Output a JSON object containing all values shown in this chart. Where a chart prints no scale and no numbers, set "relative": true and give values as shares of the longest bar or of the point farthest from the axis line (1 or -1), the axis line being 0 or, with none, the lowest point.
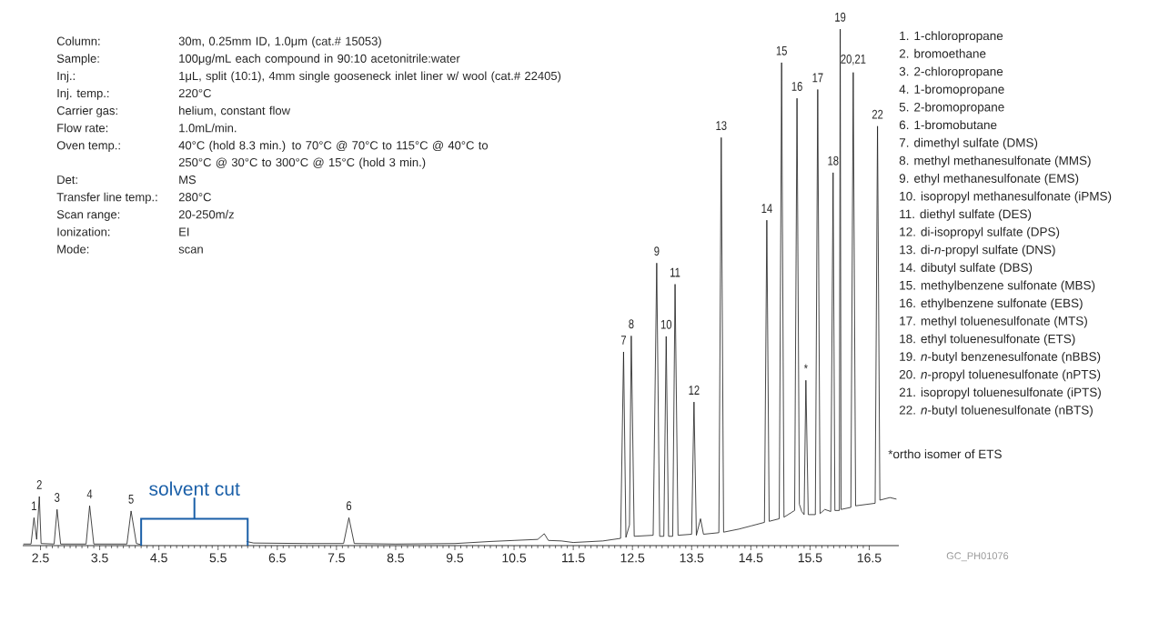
{
  "chart_data": {
    "type": "line",
    "relative": true,
    "color": "#1a1a1a",
    "x": [
      2.21,
      2.34,
      2.39,
      2.435,
      2.48,
      2.51,
      2.73,
      2.78,
      2.84,
      3.27,
      3.33,
      3.4,
      3.96,
      4.03,
      4.12,
      4.19,
      5.0,
      5.98,
      6.1,
      7.0,
      7.62,
      7.71,
      7.8,
      8.5,
      9.5,
      10.1,
      10.5,
      10.9,
      11.01,
      11.08,
      11.3,
      11.5,
      12.0,
      12.3,
      12.35,
      12.39,
      12.45,
      12.48,
      12.53,
      12.85,
      12.91,
      12.96,
      13.03,
      13.07,
      13.11,
      13.18,
      13.22,
      13.27,
      13.5,
      13.54,
      13.58,
      13.65,
      13.7,
      13.96,
      14.0,
      14.04,
      14.3,
      14.5,
      14.73,
      14.77,
      14.81,
      14.98,
      15.02,
      15.06,
      15.24,
      15.28,
      15.32,
      15.36,
      15.4,
      15.43,
      15.47,
      15.59,
      15.63,
      15.67,
      15.75,
      15.85,
      15.89,
      15.92,
      15.995,
      16.01,
      16.025,
      16.19,
      16.23,
      16.27,
      16.6,
      16.64,
      16.68,
      16.85,
      16.96
    ],
    "values": [
      0.003,
      0.003,
      0.054,
      0.012,
      0.095,
      0.004,
      0.003,
      0.07,
      0.003,
      0.003,
      0.077,
      0.003,
      0.003,
      0.067,
      0.004,
      0.002,
      null,
      0.008,
      0.005,
      0.004,
      0.004,
      0.054,
      0.004,
      0.003,
      0.004,
      0.008,
      0.01,
      0.012,
      0.023,
      0.01,
      0.009,
      0.006,
      0.009,
      0.014,
      0.375,
      0.016,
      0.04,
      0.406,
      0.018,
      0.02,
      0.547,
      0.018,
      0.018,
      0.405,
      0.018,
      0.018,
      0.506,
      0.02,
      0.022,
      0.278,
      0.02,
      0.052,
      0.022,
      0.025,
      0.79,
      0.026,
      0.032,
      0.038,
      0.045,
      0.63,
      0.047,
      0.052,
      0.935,
      0.055,
      0.068,
      0.866,
      0.08,
      0.066,
      0.06,
      0.32,
      0.06,
      0.06,
      0.883,
      0.062,
      0.07,
      0.066,
      0.722,
      0.068,
      0.068,
      1.0,
      0.07,
      0.074,
      0.916,
      0.077,
      0.082,
      0.812,
      0.088,
      0.093,
      0.09
    ],
    "xlim": [
      2.2,
      17.0
    ],
    "xticks": [
      2.5,
      3.5,
      4.5,
      5.5,
      6.5,
      7.5,
      8.5,
      9.5,
      10.5,
      11.5,
      12.5,
      13.5,
      14.5,
      15.5,
      16.5
    ],
    "annotations": [
      {
        "text": "1",
        "x": 2.39,
        "y": 0.054
      },
      {
        "text": "2",
        "x": 2.48,
        "y": 0.095
      },
      {
        "text": "3",
        "x": 2.78,
        "y": 0.07
      },
      {
        "text": "4",
        "x": 3.33,
        "y": 0.077
      },
      {
        "text": "5",
        "x": 4.03,
        "y": 0.067
      },
      {
        "text": "6",
        "x": 7.71,
        "y": 0.054
      },
      {
        "text": "7",
        "x": 12.35,
        "y": 0.375
      },
      {
        "text": "8",
        "x": 12.48,
        "y": 0.406
      },
      {
        "text": "9",
        "x": 12.91,
        "y": 0.547
      },
      {
        "text": "10",
        "x": 13.07,
        "y": 0.405
      },
      {
        "text": "11",
        "x": 13.22,
        "y": 0.506
      },
      {
        "text": "12",
        "x": 13.54,
        "y": 0.278
      },
      {
        "text": "13",
        "x": 14.0,
        "y": 0.79
      },
      {
        "text": "14",
        "x": 14.77,
        "y": 0.63
      },
      {
        "text": "15",
        "x": 15.02,
        "y": 0.935
      },
      {
        "text": "16",
        "x": 15.28,
        "y": 0.866
      },
      {
        "text": "17",
        "x": 15.63,
        "y": 0.883
      },
      {
        "text": "18",
        "x": 15.89,
        "y": 0.722
      },
      {
        "text": "19",
        "x": 16.01,
        "y": 1.0
      },
      {
        "text": "20,21",
        "x": 16.23,
        "y": 0.916
      },
      {
        "text": "22",
        "x": 16.64,
        "y": 0.812
      },
      {
        "text": "*",
        "x": 15.43,
        "y": 0.32
      },
      "Column:",
      "30m, 0.25mm ID, 1.0μm (cat.# 15053)",
      "Sample:",
      "100μg/mL each compound in 90:10 acetonitrile:water",
      "Inj.:",
      "1μL, split (10:1), 4mm single gooseneck inlet liner w/ wool (cat.# 22405)",
      "Inj. temp.:",
      "220°C",
      "Carrier gas:",
      "helium, constant flow",
      "Flow rate:",
      "1.0mL/min.",
      "Oven temp.:",
      "40°C (hold 8.3 min.) to 70°C @ 70°C to 115°C @ 40°C to 250°C @ 30°C to 300°C @ 15°C (hold 3 min.)",
      "Det:",
      "MS",
      "Transfer line temp.:",
      "280°C",
      "Scan range:",
      "20-250m/z",
      "Ionization:",
      "EI",
      "Mode:",
      "scan",
      "1. 1-chloropropane",
      "2. bromoethane",
      "3. 2-chloropropane",
      "4. 1-bromopropane",
      "5. 2-bromopropane",
      "6. 1-bromobutane",
      "7. dimethyl sulfate (DMS)",
      "8. methyl methanesulfonate (MMS)",
      "9. ethyl methanesulfonate (EMS)",
      "10. isopropyl methanesulfonate (iPMS)",
      "11. diethyl sulfate (DES)",
      "12. di-isopropyl sulfate (DPS)",
      "13. di-*n*-propyl sulfate (DNS)",
      "14. dibutyl sulfate (DBS)",
      "15. methylbenzene sulfonate (MBS)",
      "16. ethylbenzene sulfonate (EBS)",
      "17. methyl toluenesulfonate (MTS)",
      "18. ethyl toluenesulfonate (ETS)",
      "19. *n*-butyl benzenesulfonate (nBBS)",
      "20. *n*-propyl toluenesulfonate (nPTS)",
      "21. isopropyl toluenesulfonate (iPTS)",
      "22. *n*-butyl toluenesulfonate (nBTS)",
      "*ortho isomer of ETS",
      "GC_PH01076",
      "solvent cut"
    ]
  }
}
